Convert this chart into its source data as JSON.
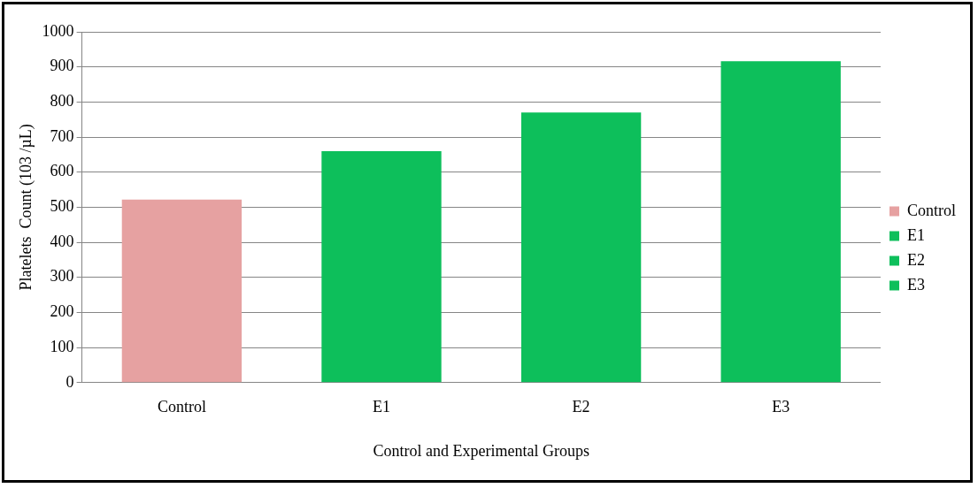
{
  "chart_data": {
    "type": "bar",
    "xlabel": "Control and Experimental Groups",
    "ylabel": "Platelets  Count (103 /µL)",
    "categories": [
      "Control",
      "E1",
      "E2",
      "E3"
    ],
    "series": [
      {
        "name": "Control",
        "color": "#e6a1a1",
        "values": [
          522,
          null,
          null,
          null
        ]
      },
      {
        "name": "E1",
        "color": "#0dbf5b",
        "values": [
          null,
          660,
          null,
          null
        ]
      },
      {
        "name": "E2",
        "color": "#0dbf5b",
        "values": [
          null,
          null,
          770,
          null
        ]
      },
      {
        "name": "E3",
        "color": "#0dbf5b",
        "values": [
          null,
          null,
          null,
          916
        ]
      }
    ],
    "ylim": [
      0,
      1000
    ],
    "yticks": [
      0,
      100,
      200,
      300,
      400,
      500,
      600,
      700,
      800,
      900,
      1000
    ],
    "grid": "y",
    "legend": "right"
  }
}
